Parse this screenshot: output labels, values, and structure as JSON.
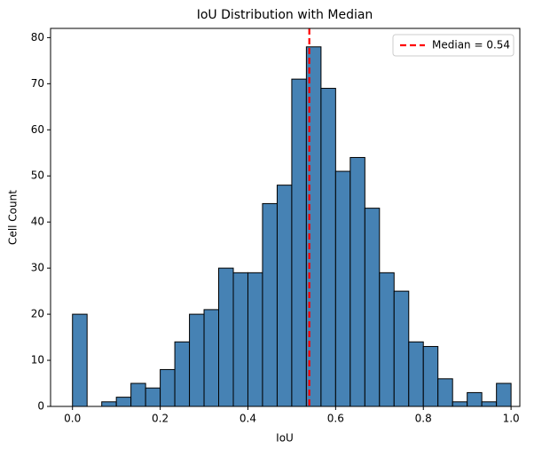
{
  "chart_data": {
    "type": "histogram",
    "title": "IoU Distribution with Median",
    "x_label": "IoU",
    "y_label": "Cell Count",
    "bins": [
      0,
      0.0333,
      0.0667,
      0.1,
      0.1333,
      0.1667,
      0.2,
      0.2333,
      0.2667,
      0.3,
      0.3333,
      0.3667,
      0.4,
      0.4333,
      0.4667,
      0.5,
      0.5333,
      0.5667,
      0.6,
      0.6333,
      0.6667,
      0.7,
      0.7333,
      0.7667,
      0.8,
      0.8333,
      0.8667,
      0.9,
      0.9333,
      0.9667,
      1
    ],
    "values": [
      20,
      0,
      1,
      2,
      5,
      4,
      8,
      14,
      20,
      21,
      30,
      29,
      29,
      44,
      48,
      71,
      78,
      69,
      51,
      54,
      43,
      29,
      25,
      14,
      13,
      6,
      1,
      3,
      1,
      5
    ],
    "color": "#4682b4",
    "edgecolor": "#000000",
    "median": {
      "value": 0.54,
      "label": "Median = 0.54",
      "color": "#ff0000"
    },
    "legend": "upper right",
    "xlim": [
      -0.05,
      1.02
    ],
    "ylim": [
      0,
      82
    ],
    "xticks": [
      {
        "value": 0,
        "label": "0.0"
      },
      {
        "value": 0.2,
        "label": "0.2"
      },
      {
        "value": 0.4,
        "label": "0.4"
      },
      {
        "value": 0.6,
        "label": "0.6"
      },
      {
        "value": 0.8,
        "label": "0.8"
      },
      {
        "value": 1,
        "label": "1.0"
      }
    ],
    "yticks": [
      0,
      10,
      20,
      30,
      40,
      50,
      60,
      70,
      80
    ]
  }
}
